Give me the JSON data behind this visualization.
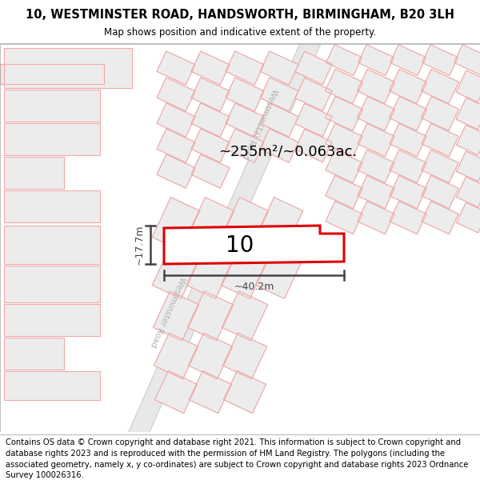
{
  "title_line1": "10, WESTMINSTER ROAD, HANDSWORTH, BIRMINGHAM, B20 3LH",
  "title_line2": "Map shows position and indicative extent of the property.",
  "footer_text": "Contains OS data © Crown copyright and database right 2021. This information is subject to Crown copyright and database rights 2023 and is reproduced with the permission of HM Land Registry. The polygons (including the associated geometry, namely x, y co-ordinates) are subject to Crown copyright and database rights 2023 Ordnance Survey 100026316.",
  "area_label": "~255m²/~0.063ac.",
  "property_number": "10",
  "width_label": "~40.2m",
  "height_label": "~17.7m",
  "map_bg": "#ffffff",
  "block_fc": "#ececec",
  "block_ec": "#d8d8d8",
  "red_prop_color": "#dd0000",
  "red_thin_color": "#f2aaaa",
  "road_band_color": "#e8e8e8",
  "road_edge_color": "#cccccc",
  "road_label_color": "#b0b0b0",
  "dim_color": "#444444",
  "prop_fill": "#ffffff",
  "title_fontsize": 10.5,
  "subtitle_fontsize": 8.5,
  "footer_fontsize": 7.2
}
